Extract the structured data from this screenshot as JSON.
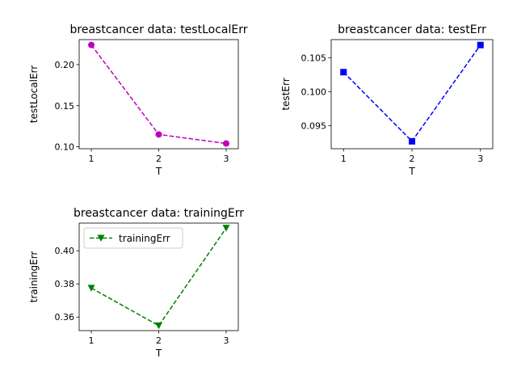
{
  "chart_data": [
    {
      "type": "line",
      "title": "breastcancer data: testLocalErr",
      "xlabel": "T",
      "ylabel": "testLocalErr",
      "x": [
        1,
        2,
        3
      ],
      "xticks": [
        "1",
        "2",
        "3"
      ],
      "yticks": [
        "0.10",
        "0.15",
        "0.20"
      ],
      "ylim": [
        0.0976,
        0.2305
      ],
      "series": [
        {
          "values": [
            0.224,
            0.115,
            0.104
          ],
          "color": "#bf00bf",
          "marker": "circle",
          "linestyle": "dashed"
        }
      ],
      "legend": null
    },
    {
      "type": "line",
      "title": "breastcancer data: testErr",
      "xlabel": "T",
      "ylabel": "testErr",
      "x": [
        1,
        2,
        3
      ],
      "xticks": [
        "1",
        "2",
        "3"
      ],
      "yticks": [
        "0.095",
        "0.100",
        "0.105"
      ],
      "ylim": [
        0.0916,
        0.1077
      ],
      "series": [
        {
          "values": [
            0.1029,
            0.0927,
            0.1069
          ],
          "color": "#0000ff",
          "marker": "square",
          "linestyle": "dashed"
        }
      ],
      "legend": null
    },
    {
      "type": "line",
      "title": "breastcancer data: trainingErr",
      "xlabel": "T",
      "ylabel": "trainingErr",
      "x": [
        1,
        2,
        3
      ],
      "xticks": [
        "1",
        "2",
        "3"
      ],
      "yticks": [
        "0.36",
        "0.38",
        "0.40"
      ],
      "ylim": [
        0.3518,
        0.4167
      ],
      "series": [
        {
          "name": "trainingErr",
          "values": [
            0.3775,
            0.3548,
            0.4137
          ],
          "color": "#008000",
          "marker": "triangle-down",
          "linestyle": "dashed"
        }
      ],
      "legend": "upper-left"
    }
  ]
}
